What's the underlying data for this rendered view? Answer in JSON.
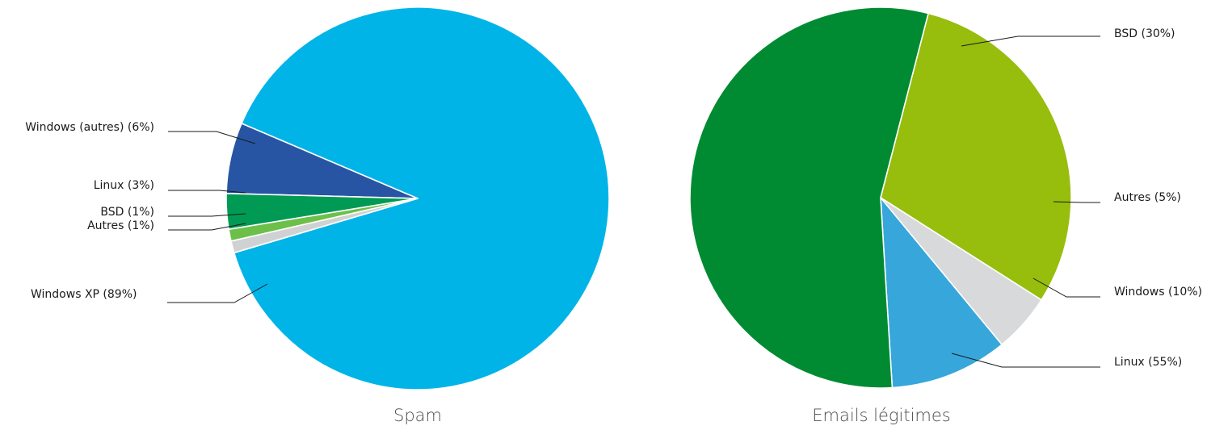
{
  "chart_data": [
    {
      "type": "pie",
      "title": "Spam",
      "slices": [
        {
          "label": "Windows XP (89%)",
          "value": 89,
          "color": "#00b4e8"
        },
        {
          "label": "Windows (autres) (6%)",
          "value": 6,
          "color": "#2755a4"
        },
        {
          "label": "Linux (3%)",
          "value": 3,
          "color": "#009a54"
        },
        {
          "label": "BSD (1%)",
          "value": 1,
          "color": "#6cc04a"
        },
        {
          "label": "Autres (1%)",
          "value": 1,
          "color": "#d0d1d3"
        }
      ]
    },
    {
      "type": "pie",
      "title": "Emails légitimes",
      "slices": [
        {
          "label": "BSD (30%)",
          "value": 30,
          "color": "#97bd0d"
        },
        {
          "label": "Autres (5%)",
          "value": 5,
          "color": "#d8d9da"
        },
        {
          "label": "Windows (10%)",
          "value": 10,
          "color": "#37a6db"
        },
        {
          "label": "Linux (55%)",
          "value": 55,
          "color": "#008b32"
        }
      ]
    }
  ]
}
